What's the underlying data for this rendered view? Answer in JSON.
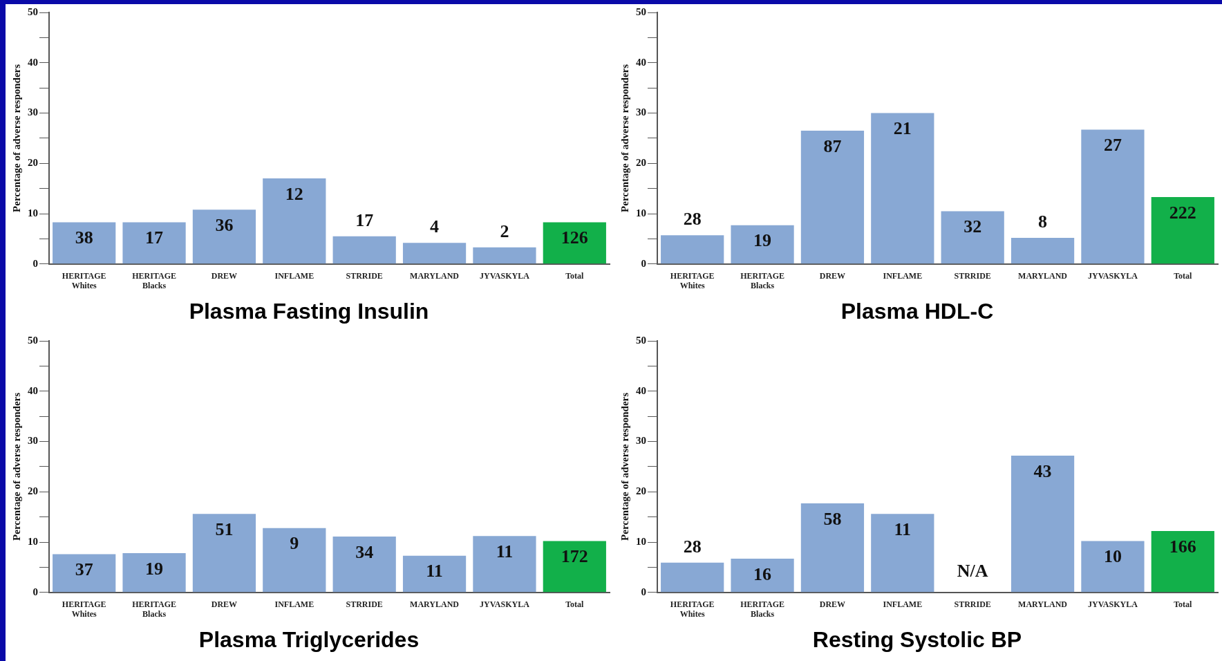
{
  "chart_data": [
    {
      "type": "bar",
      "title": "Plasma Fasting Insulin",
      "ylabel": "Percentage of adverse responders",
      "categories": [
        "HERITAGE\nWhites",
        "HERITAGE\nBlacks",
        "DREW",
        "INFLAME",
        "STRRIDE",
        "MARYLAND",
        "JYVASKYLA",
        "Total"
      ],
      "values": [
        8.3,
        8.3,
        10.8,
        17,
        5.5,
        4.2,
        3.3,
        8.3
      ],
      "colors": [
        "#88a8d4",
        "#88a8d4",
        "#88a8d4",
        "#88a8d4",
        "#88a8d4",
        "#88a8d4",
        "#88a8d4",
        "#12b04a"
      ],
      "annotations": [
        {
          "text": "38",
          "x": "HERITAGE\nWhites",
          "y": 8.3
        },
        {
          "text": "17",
          "x": "HERITAGE\nBlacks",
          "y": 8.3
        },
        {
          "text": "36",
          "x": "DREW",
          "y": 10.8
        },
        {
          "text": "12",
          "x": "INFLAME",
          "y": 17
        },
        {
          "text": "17",
          "x": "STRRIDE",
          "y": 5.5
        },
        {
          "text": "4",
          "x": "MARYLAND",
          "y": 4.2
        },
        {
          "text": "2",
          "x": "JYVASKYLA",
          "y": 3.3
        },
        {
          "text": "126",
          "x": "Total",
          "y": 8.3
        }
      ],
      "ylim": [
        0,
        50
      ],
      "yticks": [
        0,
        {
          "value": 5,
          "label": null
        },
        10,
        {
          "value": 15,
          "label": null
        },
        20,
        {
          "value": 25,
          "label": null
        },
        30,
        {
          "value": 35,
          "label": null
        },
        40,
        {
          "value": 45,
          "label": null
        },
        50
      ],
      "grid": false,
      "legend": false
    },
    {
      "type": "bar",
      "title": "Plasma HDL-C",
      "ylabel": "Percentage of adverse responders",
      "categories": [
        "HERITAGE\nWhites",
        "HERITAGE\nBlacks",
        "DREW",
        "INFLAME",
        "STRRIDE",
        "MARYLAND",
        "JYVASKYLA",
        "Total"
      ],
      "values": [
        5.7,
        7.7,
        26.5,
        30,
        10.5,
        5.2,
        26.7,
        13.3
      ],
      "colors": [
        "#88a8d4",
        "#88a8d4",
        "#88a8d4",
        "#88a8d4",
        "#88a8d4",
        "#88a8d4",
        "#88a8d4",
        "#12b04a"
      ],
      "annotations": [
        {
          "text": "28",
          "x": "HERITAGE\nWhites",
          "y": 5.7
        },
        {
          "text": "19",
          "x": "HERITAGE\nBlacks",
          "y": 7.7
        },
        {
          "text": "87",
          "x": "DREW",
          "y": 26.5
        },
        {
          "text": "21",
          "x": "INFLAME",
          "y": 30
        },
        {
          "text": "32",
          "x": "STRRIDE",
          "y": 10.5
        },
        {
          "text": "8",
          "x": "MARYLAND",
          "y": 5.2
        },
        {
          "text": "27",
          "x": "JYVASKYLA",
          "y": 26.7
        },
        {
          "text": "222",
          "x": "Total",
          "y": 13.3
        }
      ],
      "ylim": [
        0,
        50
      ],
      "yticks": [
        0,
        {
          "value": 5,
          "label": null
        },
        10,
        {
          "value": 15,
          "label": null
        },
        20,
        {
          "value": 25,
          "label": null
        },
        30,
        {
          "value": 35,
          "label": null
        },
        40,
        {
          "value": 45,
          "label": null
        },
        50
      ],
      "grid": false,
      "legend": false
    },
    {
      "type": "bar",
      "title": "Plasma Triglycerides",
      "ylabel": "Percentage of adverse responders",
      "categories": [
        "HERITAGE\nWhites",
        "HERITAGE\nBlacks",
        "DREW",
        "INFLAME",
        "STRRIDE",
        "MARYLAND",
        "JYVASKYLA",
        "Total"
      ],
      "values": [
        7.6,
        7.8,
        15.6,
        12.8,
        11.1,
        7.3,
        11.2,
        10.2
      ],
      "colors": [
        "#88a8d4",
        "#88a8d4",
        "#88a8d4",
        "#88a8d4",
        "#88a8d4",
        "#88a8d4",
        "#88a8d4",
        "#12b04a"
      ],
      "annotations": [
        {
          "text": "37",
          "x": "HERITAGE\nWhites",
          "y": 7.6
        },
        {
          "text": "19",
          "x": "HERITAGE\nBlacks",
          "y": 7.8
        },
        {
          "text": "51",
          "x": "DREW",
          "y": 15.6
        },
        {
          "text": "9",
          "x": "INFLAME",
          "y": 12.8
        },
        {
          "text": "34",
          "x": "STRRIDE",
          "y": 11.1
        },
        {
          "text": "11",
          "x": "MARYLAND",
          "y": 7.3
        },
        {
          "text": "11",
          "x": "JYVASKYLA",
          "y": 11.2
        },
        {
          "text": "172",
          "x": "Total",
          "y": 10.2
        }
      ],
      "ylim": [
        0,
        50
      ],
      "yticks": [
        0,
        {
          "value": 5,
          "label": null
        },
        10,
        {
          "value": 15,
          "label": null
        },
        20,
        {
          "value": 25,
          "label": null
        },
        30,
        {
          "value": 35,
          "label": null
        },
        40,
        {
          "value": 45,
          "label": null
        },
        50
      ],
      "grid": false,
      "legend": false
    },
    {
      "type": "bar",
      "title": "Resting Systolic BP",
      "ylabel": "Percentage of adverse responders",
      "categories": [
        "HERITAGE\nWhites",
        "HERITAGE\nBlacks",
        "DREW",
        "INFLAME",
        "STRRIDE",
        "MARYLAND",
        "JYVASKYLA",
        "Total"
      ],
      "values": [
        5.9,
        6.7,
        17.7,
        15.6,
        null,
        27.2,
        10.2,
        12.2
      ],
      "colors": [
        "#88a8d4",
        "#88a8d4",
        "#88a8d4",
        "#88a8d4",
        "#88a8d4",
        "#88a8d4",
        "#88a8d4",
        "#12b04a"
      ],
      "annotations": [
        {
          "text": "28",
          "x": "HERITAGE\nWhites",
          "y": 5.9
        },
        {
          "text": "16",
          "x": "HERITAGE\nBlacks",
          "y": 6.7
        },
        {
          "text": "58",
          "x": "DREW",
          "y": 17.7
        },
        {
          "text": "11",
          "x": "INFLAME",
          "y": 15.6
        },
        "N/A",
        {
          "text": "43",
          "x": "MARYLAND",
          "y": 27.2
        },
        {
          "text": "10",
          "x": "JYVASKYLA",
          "y": 10.2
        },
        {
          "text": "166",
          "x": "Total",
          "y": 12.2
        }
      ],
      "ylim": [
        0,
        50
      ],
      "yticks": [
        0,
        {
          "value": 5,
          "label": null
        },
        10,
        {
          "value": 15,
          "label": null
        },
        20,
        {
          "value": 25,
          "label": null
        },
        30,
        {
          "value": 35,
          "label": null
        },
        40,
        {
          "value": 45,
          "label": null
        },
        50
      ],
      "grid": false,
      "legend": false
    }
  ]
}
